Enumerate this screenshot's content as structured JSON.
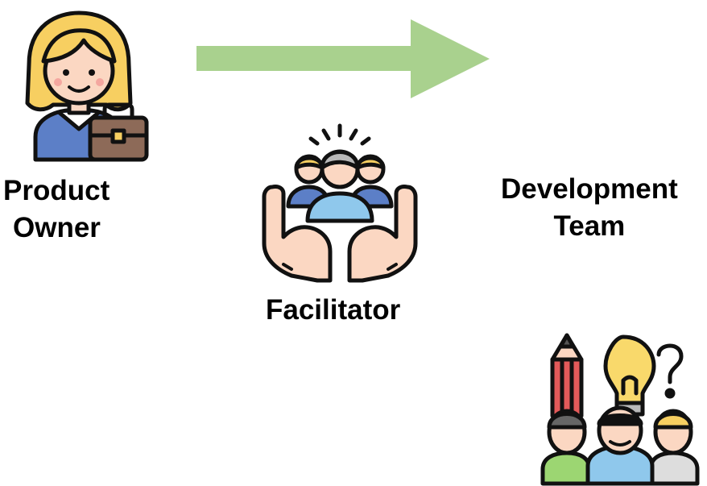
{
  "roles": {
    "product_owner": {
      "line1": "Product",
      "line2": "Owner",
      "icon": "businesswoman-icon"
    },
    "facilitator": {
      "label": "Facilitator",
      "icon": "hands-holding-team-icon"
    },
    "development_team": {
      "line1": "Development",
      "line2": "Team",
      "icon": "team-ideas-icon"
    }
  },
  "arrow": {
    "direction": "right",
    "color": "#a9d18e"
  },
  "colors": {
    "outline": "#111111",
    "hair_blonde": "#f7cf61",
    "skin": "#fbd7c2",
    "jacket_blue": "#5c7fc7",
    "bag_brown": "#8d6a58",
    "shirt_light_blue": "#8fc8ec",
    "bulb_yellow": "#f9d96b",
    "pencil_red": "#e35a5a",
    "shirt_green": "#9cd672"
  }
}
